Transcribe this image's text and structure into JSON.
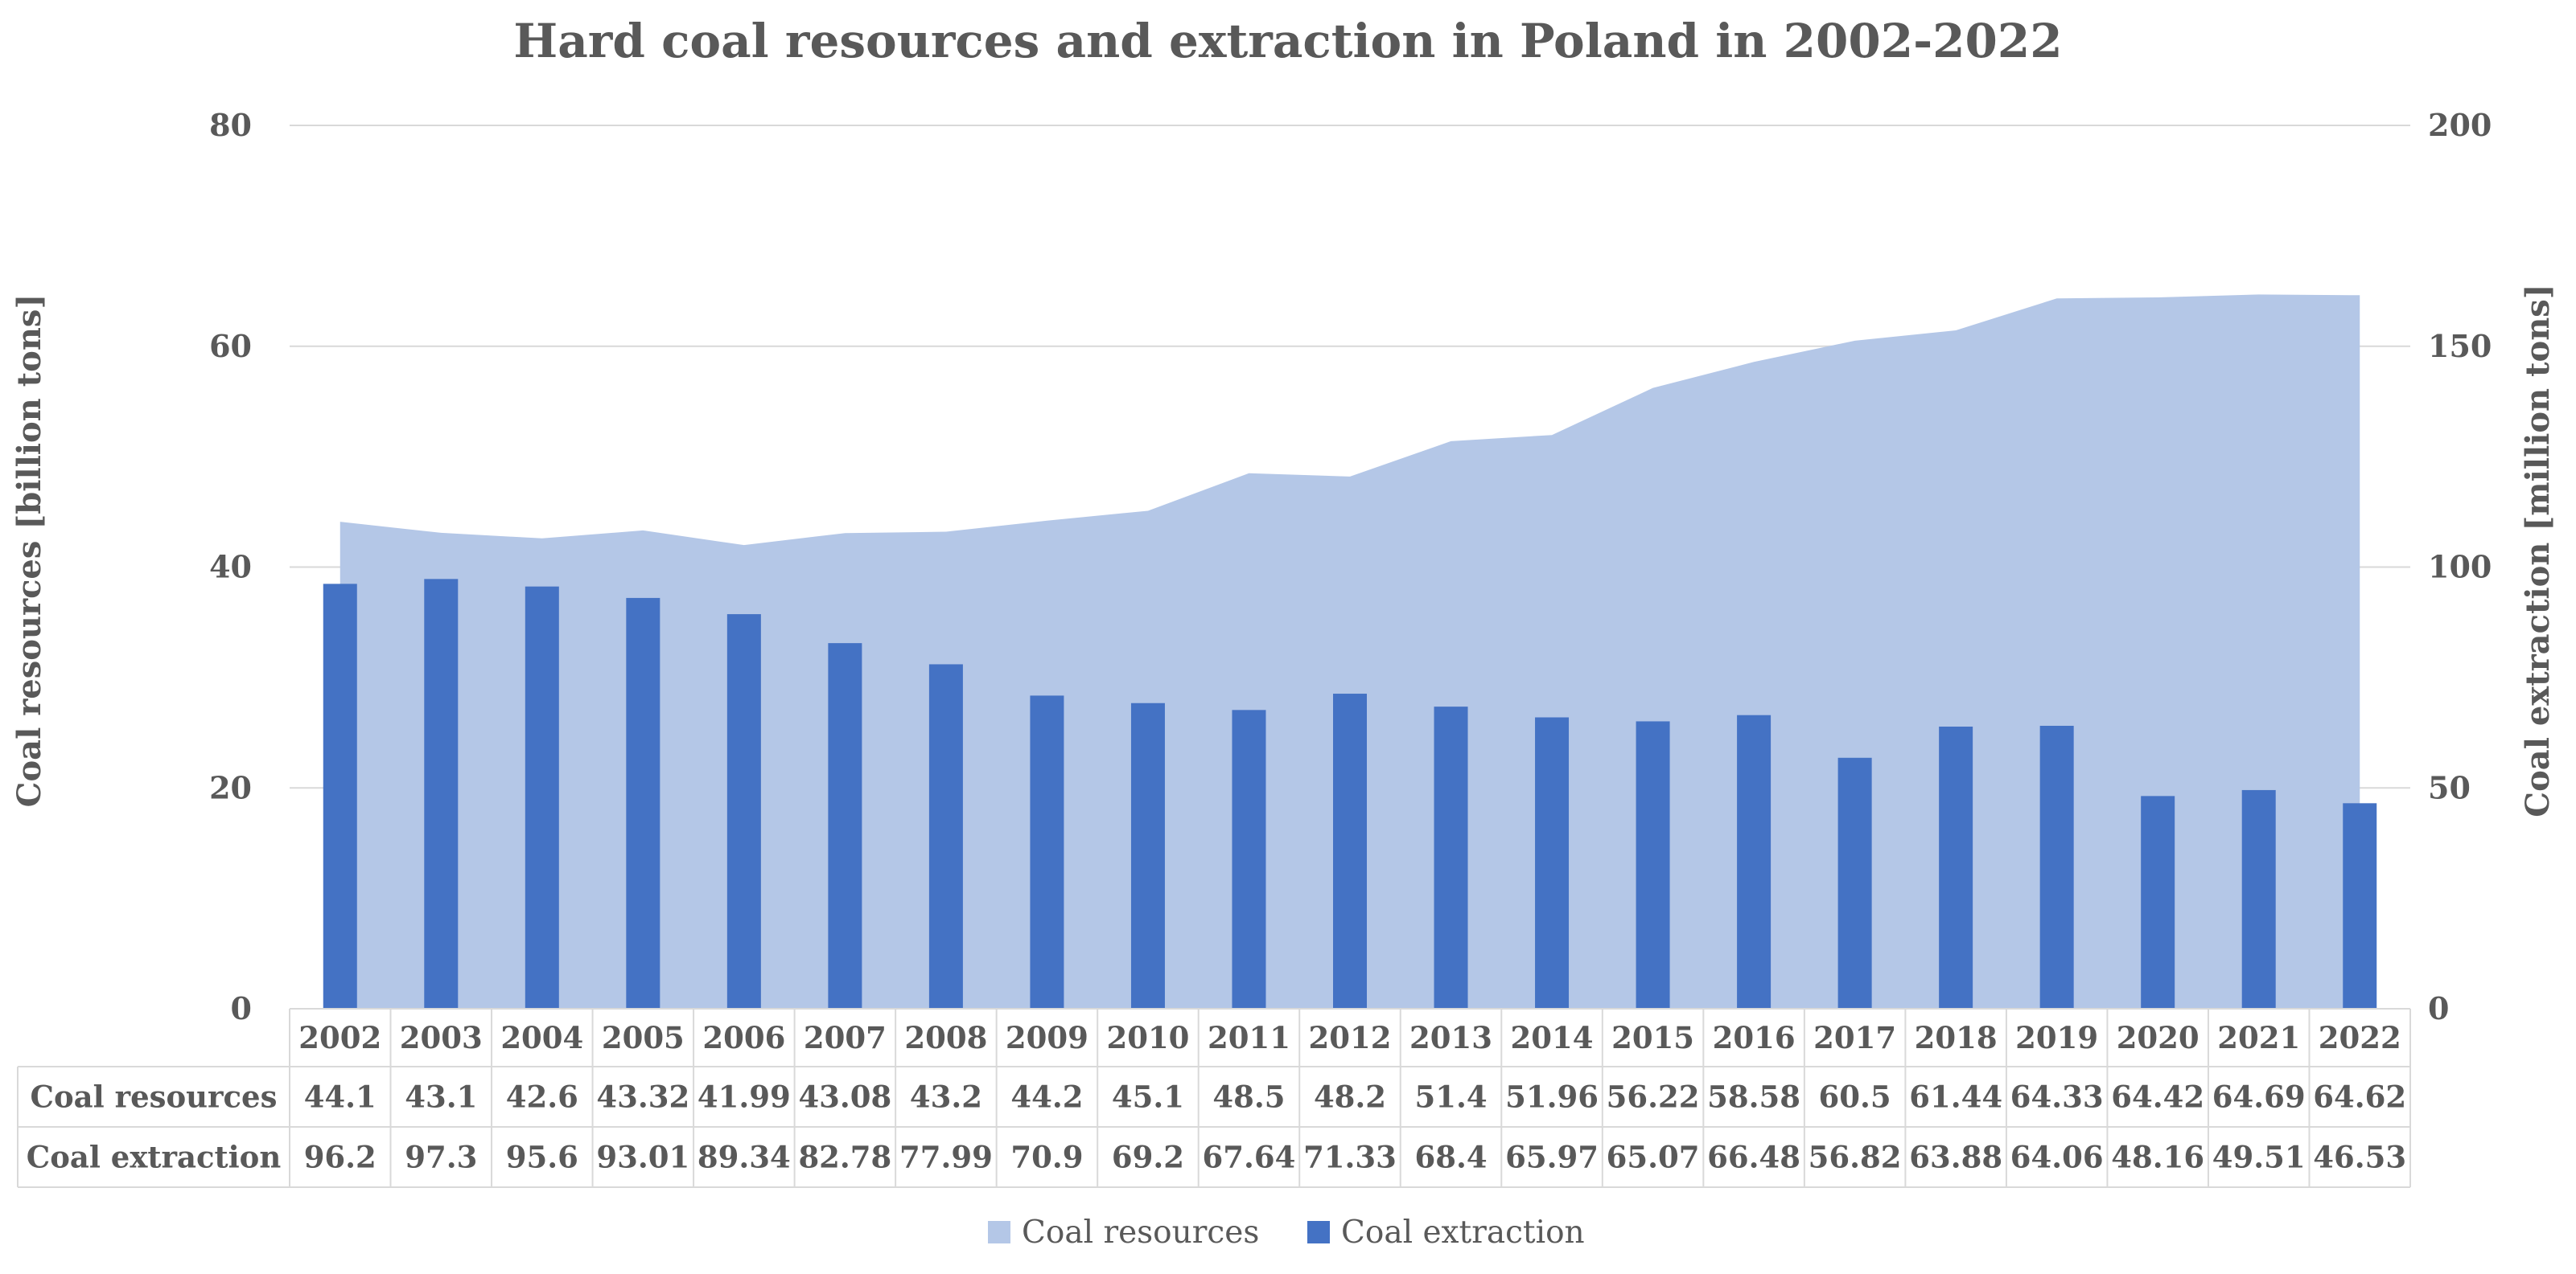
{
  "chart_data": {
    "type": "bar",
    "title": "Hard coal resources and extraction in Poland in 2002-2022",
    "categories": [
      "2002",
      "2003",
      "2004",
      "2005",
      "2006",
      "2007",
      "2008",
      "2009",
      "2010",
      "2011",
      "2012",
      "2013",
      "2014",
      "2015",
      "2016",
      "2017",
      "2018",
      "2019",
      "2020",
      "2021",
      "2022"
    ],
    "series": [
      {
        "name": "Coal resources",
        "kind": "area",
        "axis": "left",
        "color": "#B4C7E7",
        "values": [
          44.1,
          43.1,
          42.6,
          43.32,
          41.99,
          43.08,
          43.2,
          44.2,
          45.1,
          48.5,
          48.2,
          51.4,
          51.96,
          56.22,
          58.58,
          60.5,
          61.44,
          64.33,
          64.42,
          64.69,
          64.62
        ]
      },
      {
        "name": "Coal extraction",
        "kind": "bar",
        "axis": "right",
        "color": "#4472C4",
        "values": [
          96.2,
          97.3,
          95.6,
          93.01,
          89.34,
          82.78,
          77.99,
          70.9,
          69.2,
          67.64,
          71.33,
          68.4,
          65.97,
          65.07,
          66.48,
          56.82,
          63.88,
          64.06,
          48.16,
          49.51,
          46.53
        ]
      }
    ],
    "ylabel": "Coal resources [billion tons]",
    "ylabel_right": "Coal extraction  [million tons]",
    "ylim": [
      0,
      80
    ],
    "ylim_right": [
      0,
      200
    ],
    "yticks": [
      0,
      20,
      40,
      60,
      80
    ],
    "yticks_right": [
      0,
      50,
      100,
      150,
      200
    ],
    "grid": true,
    "data_table": true,
    "legend": "bottom",
    "grid_color": "#D9D9D9"
  }
}
